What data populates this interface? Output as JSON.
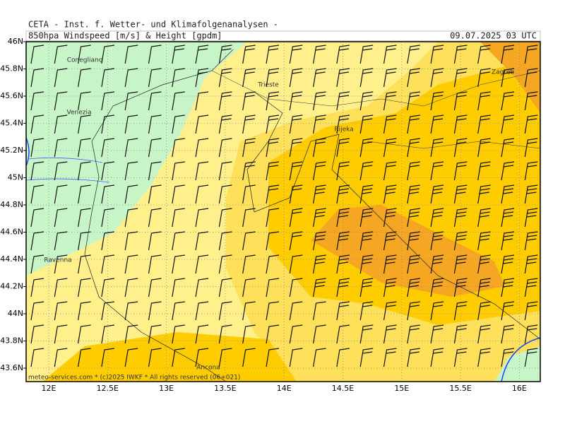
{
  "header": {
    "institute": "CETA - Inst. f. Wetter- und Klimafolgenanalysen -",
    "field": "850hpa Windspeed [m/s] & Height [gpdm]",
    "valid_time": "09.07.2025 03 UTC"
  },
  "map": {
    "lat_labels": [
      "46N",
      "45.8N",
      "45.6N",
      "45.4N",
      "45.2N",
      "45N",
      "44.8N",
      "44.6N",
      "44.4N",
      "44.2N",
      "44N",
      "43.8N",
      "43.6N"
    ],
    "lon_labels": [
      "12E",
      "12.5E",
      "13E",
      "13.5E",
      "14E",
      "14.5E",
      "15E",
      "15.5E",
      "16E"
    ],
    "places": [
      "Conegliano",
      "Trieste",
      "Zagreb",
      "Venezia",
      "Rijeka",
      "Ravenna",
      "Ancona"
    ],
    "footer": "meteo-services.com * (c)2025 IWKF * All rights reserved (06+021)"
  }
}
